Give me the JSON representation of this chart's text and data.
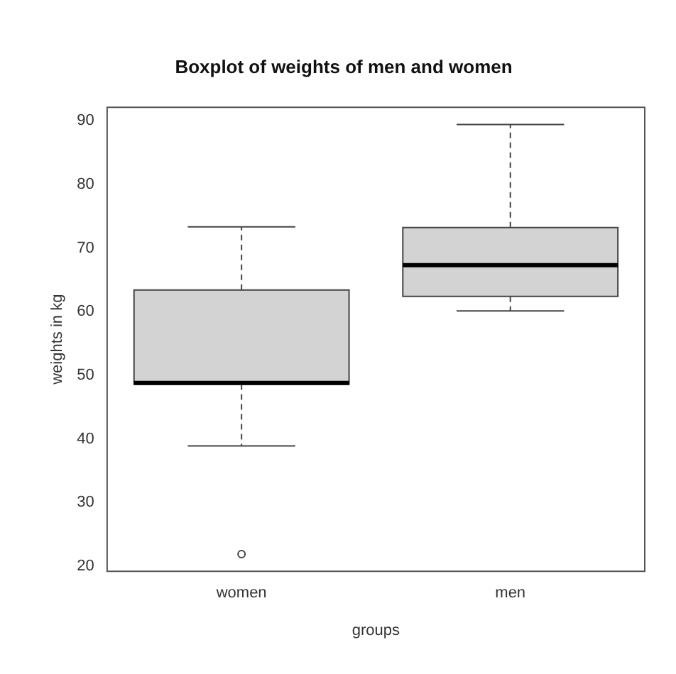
{
  "chart_data": {
    "type": "box",
    "title": "Boxplot of weights of men and women",
    "xlabel": "groups",
    "ylabel": "weights in kg",
    "categories": [
      "women",
      "men"
    ],
    "boxes": [
      {
        "low": 38.9,
        "q1": 48.6,
        "median": 48.8,
        "q3": 63.4,
        "high": 73.3,
        "outliers": [
          21.9
        ]
      },
      {
        "low": 60.1,
        "q1": 62.4,
        "median": 67.3,
        "q3": 73.2,
        "high": 89.4
      }
    ],
    "color": "#d3d3d3",
    "ylim": [
      19.2,
      92.1
    ],
    "yticks": [
      20,
      30,
      40,
      50,
      60,
      70,
      80,
      90
    ],
    "grid": false
  }
}
